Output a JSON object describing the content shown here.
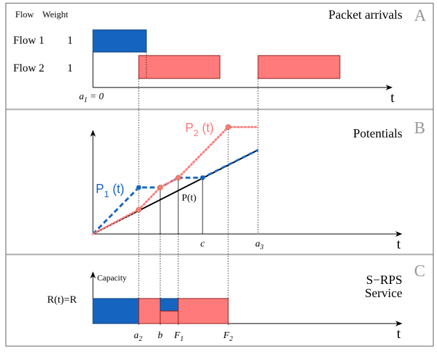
{
  "colors": {
    "flow1": "#1565c0",
    "flow2": "#ff7b7b",
    "flow2_border": "#8b1a1a",
    "p2_text": "#ff7777",
    "panel_letter": "#999999",
    "separator": "#aaaaaa"
  },
  "panel_a": {
    "letter": "A",
    "title": "Packet arrivals",
    "col_flow": "Flow",
    "col_weight": "Weight",
    "flows": [
      {
        "name": "Flow 1",
        "weight": "1"
      },
      {
        "name": "Flow 2",
        "weight": "1"
      }
    ],
    "axis_t": "t",
    "a1_main": "a",
    "a1_sub": "1",
    "a1_rest": " = 0"
  },
  "panel_b": {
    "letter": "B",
    "title": "Potentials",
    "p2_main": "P",
    "p2_sub": "2",
    "p2_rest": " (t)",
    "p1_main": "P",
    "p1_sub": "1",
    "p1_rest": " (t)",
    "pt_label": "P(t)",
    "c_label": "c",
    "a3_main": "a",
    "a3_sub": "3",
    "axis_t": "t"
  },
  "panel_c": {
    "letter": "C",
    "title_line1": "S−RPS",
    "title_line2": "Service",
    "capacity_label": "Capacity",
    "rate_label": "R(t)=R",
    "a2_main": "a",
    "a2_sub": "2",
    "b_label": "b",
    "f1_main": "F",
    "f1_sub": "1",
    "f2_main": "F",
    "f2_sub": "2",
    "axis_t": "t"
  }
}
